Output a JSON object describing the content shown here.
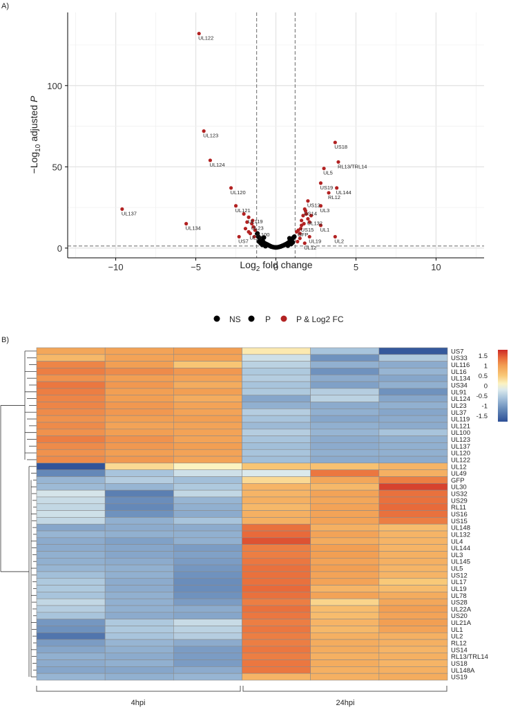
{
  "chart_data": [
    {
      "type": "scatter",
      "panel_label": "A)",
      "xlabel": "Log2 fold change",
      "ylabel": "-Log10 adjusted P",
      "xlim": [
        -13,
        13
      ],
      "ylim": [
        -6,
        145
      ],
      "xticks": [
        -10,
        -5,
        0,
        5,
        10
      ],
      "yticks": [
        0,
        50,
        100
      ],
      "thresholds": {
        "x": [
          -1.2,
          1.2
        ],
        "y": 1.3
      },
      "legend": {
        "placement": "bottom-center",
        "entries": [
          {
            "label": "NS",
            "color": "#000000"
          },
          {
            "label": "P",
            "color": "#000000"
          },
          {
            "label": "P & Log2 FC",
            "color": "#b22222"
          }
        ]
      },
      "significant": [
        {
          "label": "UL122",
          "x": -4.8,
          "y": 132
        },
        {
          "label": "UL123",
          "x": -4.5,
          "y": 72
        },
        {
          "label": "UL124",
          "x": -4.1,
          "y": 54
        },
        {
          "label": "UL120",
          "x": -2.8,
          "y": 37
        },
        {
          "label": "UL121",
          "x": -2.5,
          "y": 26
        },
        {
          "label": "UL137",
          "x": -9.6,
          "y": 24
        },
        {
          "label": "UL134",
          "x": -5.6,
          "y": 15
        },
        {
          "label": "UL119",
          "x": -1.7,
          "y": 19
        },
        {
          "label": "UL23",
          "x": -1.5,
          "y": 15
        },
        {
          "label": "UL100",
          "x": -1.3,
          "y": 11
        },
        {
          "label": "UL16",
          "x": -1.6,
          "y": 9
        },
        {
          "label": "US7",
          "x": -2.3,
          "y": 7
        },
        {
          "label": "US18",
          "x": 3.7,
          "y": 65
        },
        {
          "label": "RL13/TRL14",
          "x": 3.9,
          "y": 53
        },
        {
          "label": "UL5",
          "x": 3.0,
          "y": 49
        },
        {
          "label": "US19",
          "x": 2.8,
          "y": 40
        },
        {
          "label": "UL144",
          "x": 3.8,
          "y": 37
        },
        {
          "label": "RL12",
          "x": 3.3,
          "y": 34
        },
        {
          "label": "US12",
          "x": 2.0,
          "y": 29
        },
        {
          "label": "UL3",
          "x": 2.8,
          "y": 26
        },
        {
          "label": "US14",
          "x": 1.8,
          "y": 24
        },
        {
          "label": "UL132",
          "x": 2.0,
          "y": 18
        },
        {
          "label": "US15",
          "x": 1.6,
          "y": 14
        },
        {
          "label": "UL1",
          "x": 2.8,
          "y": 14
        },
        {
          "label": "GFP",
          "x": 1.4,
          "y": 11
        },
        {
          "label": "UL19",
          "x": 2.1,
          "y": 7
        },
        {
          "label": "UL2",
          "x": 3.7,
          "y": 7
        },
        {
          "label": "UL12",
          "x": 1.8,
          "y": 3
        }
      ],
      "extra_significant": [
        {
          "x": -1.8,
          "y": 16
        },
        {
          "x": -1.9,
          "y": 12
        },
        {
          "x": -1.4,
          "y": 13
        },
        {
          "x": -1.7,
          "y": 10
        },
        {
          "x": -1.35,
          "y": 7
        },
        {
          "x": -2.0,
          "y": 21
        },
        {
          "x": -1.45,
          "y": 17
        },
        {
          "x": 1.7,
          "y": 20
        },
        {
          "x": 1.9,
          "y": 21
        },
        {
          "x": 1.6,
          "y": 17
        },
        {
          "x": 2.1,
          "y": 16
        },
        {
          "x": 1.55,
          "y": 12
        },
        {
          "x": 1.75,
          "y": 15
        },
        {
          "x": 1.5,
          "y": 9
        },
        {
          "x": 1.3,
          "y": 10
        },
        {
          "x": 1.5,
          "y": 6
        },
        {
          "x": 1.35,
          "y": 4
        },
        {
          "x": 2.2,
          "y": 20
        },
        {
          "x": 1.85,
          "y": 23
        }
      ],
      "ns_points": [
        {
          "x": -1.15,
          "y": 9
        },
        {
          "x": -1.1,
          "y": 7
        },
        {
          "x": -1.0,
          "y": 6
        },
        {
          "x": -0.9,
          "y": 5
        },
        {
          "x": -0.8,
          "y": 4
        },
        {
          "x": -0.7,
          "y": 3
        },
        {
          "x": -0.6,
          "y": 2.5
        },
        {
          "x": -0.5,
          "y": 2
        },
        {
          "x": -0.4,
          "y": 1.5
        },
        {
          "x": -0.3,
          "y": 1
        },
        {
          "x": -0.2,
          "y": 0.7
        },
        {
          "x": -0.1,
          "y": 0.5
        },
        {
          "x": 0.0,
          "y": 0.4
        },
        {
          "x": 0.1,
          "y": 0.5
        },
        {
          "x": 0.2,
          "y": 0.7
        },
        {
          "x": 0.3,
          "y": 1
        },
        {
          "x": 0.4,
          "y": 1.4
        },
        {
          "x": 0.5,
          "y": 1.8
        },
        {
          "x": 0.6,
          "y": 2.3
        },
        {
          "x": 0.7,
          "y": 2.8
        },
        {
          "x": 0.8,
          "y": 3.5
        },
        {
          "x": 0.9,
          "y": 4.5
        },
        {
          "x": 1.0,
          "y": 5.5
        },
        {
          "x": 1.1,
          "y": 6.5
        },
        {
          "x": 1.15,
          "y": 7
        },
        {
          "x": -1.05,
          "y": 4
        },
        {
          "x": -0.85,
          "y": 2
        },
        {
          "x": -0.65,
          "y": 1.2
        },
        {
          "x": 0.75,
          "y": 1.5
        },
        {
          "x": 0.95,
          "y": 2.5
        },
        {
          "x": 1.05,
          "y": 3.5
        },
        {
          "x": -0.95,
          "y": 3
        },
        {
          "x": 0.85,
          "y": 6
        },
        {
          "x": -0.75,
          "y": 6.5
        }
      ]
    },
    {
      "type": "heatmap",
      "panel_label": "B)",
      "columns": [
        "4hpi",
        "4hpi",
        "4hpi",
        "24hpi",
        "24hpi",
        "24hpi"
      ],
      "column_groups": [
        {
          "label": "4hpi",
          "span": 3
        },
        {
          "label": "24hpi",
          "span": 3
        }
      ],
      "rows": [
        "US7",
        "US33",
        "UL116",
        "UL16",
        "UL134",
        "US34",
        "UL91",
        "UL124",
        "UL23",
        "UL37",
        "UL119",
        "UL121",
        "UL100",
        "UL123",
        "UL137",
        "UL120",
        "UL122",
        "UL12",
        "UL49",
        "GFP",
        "UL30",
        "US32",
        "US29",
        "RL11",
        "US16",
        "US15",
        "UL148",
        "UL132",
        "UL4",
        "UL144",
        "UL3",
        "UL145",
        "UL5",
        "US12",
        "UL17",
        "UL19",
        "UL78",
        "US28",
        "UL22A",
        "US20",
        "UL21A",
        "UL1",
        "UL2",
        "RL12",
        "US14",
        "RL13/TRL14",
        "US18",
        "UL148A",
        "US19"
      ],
      "values": [
        [
          0.9,
          0.95,
          1.0,
          0.2,
          -0.6,
          -1.7
        ],
        [
          0.7,
          0.95,
          0.95,
          -0.3,
          -1.1,
          -0.55
        ],
        [
          1.2,
          1.0,
          0.55,
          -0.45,
          -0.8,
          -0.85
        ],
        [
          1.25,
          1.15,
          1.05,
          -0.55,
          -1.1,
          -0.75
        ],
        [
          1.1,
          1.0,
          0.95,
          -0.5,
          -0.85,
          -0.9
        ],
        [
          1.3,
          1.05,
          0.85,
          -0.6,
          -0.95,
          -0.8
        ],
        [
          1.25,
          1.0,
          1.0,
          -0.55,
          -0.5,
          -1.1
        ],
        [
          1.2,
          1.0,
          0.85,
          -0.9,
          -0.45,
          -0.9
        ],
        [
          1.2,
          1.05,
          0.95,
          -0.8,
          -0.85,
          -0.8
        ],
        [
          1.15,
          1.05,
          0.95,
          -0.5,
          -0.8,
          -0.9
        ],
        [
          1.1,
          1.0,
          1.0,
          -0.6,
          -0.9,
          -0.85
        ],
        [
          1.15,
          0.95,
          0.95,
          -0.7,
          -0.8,
          -0.85
        ],
        [
          1.1,
          1.0,
          0.95,
          -0.5,
          -0.75,
          -0.6
        ],
        [
          1.25,
          1.1,
          0.95,
          -0.6,
          -0.85,
          -0.8
        ],
        [
          1.15,
          1.05,
          1.0,
          -0.65,
          -0.85,
          -0.8
        ],
        [
          1.1,
          1.0,
          0.95,
          -0.6,
          -0.8,
          -0.8
        ],
        [
          1.15,
          1.05,
          0.95,
          -0.65,
          -0.85,
          -0.85
        ],
        [
          -1.75,
          0.35,
          0.1,
          0.55,
          0.6,
          0.75
        ],
        [
          -1.2,
          -0.6,
          -0.3,
          -0.2,
          1.3,
          0.8
        ],
        [
          -0.75,
          -0.5,
          -0.65,
          0.35,
          0.9,
          1.25
        ],
        [
          -0.7,
          -0.75,
          -0.55,
          0.75,
          0.7,
          1.65
        ],
        [
          -0.25,
          -1.3,
          -0.4,
          0.75,
          0.95,
          1.35
        ],
        [
          -0.35,
          -1.15,
          -0.75,
          0.8,
          0.9,
          1.35
        ],
        [
          -0.4,
          -1.2,
          -0.8,
          0.7,
          0.95,
          1.4
        ],
        [
          -0.3,
          -1.1,
          -0.85,
          0.8,
          0.95,
          1.35
        ],
        [
          -0.4,
          -0.8,
          -0.6,
          0.8,
          0.95,
          1.25
        ],
        [
          -0.9,
          -0.85,
          -0.85,
          1.35,
          0.8,
          0.65
        ],
        [
          -0.75,
          -0.8,
          -0.8,
          1.4,
          0.95,
          0.75
        ],
        [
          -0.85,
          -0.95,
          -0.8,
          1.55,
          0.85,
          0.75
        ],
        [
          -0.85,
          -0.9,
          -1.0,
          1.25,
          1.0,
          0.75
        ],
        [
          -0.8,
          -0.9,
          -0.95,
          1.25,
          1.0,
          0.8
        ],
        [
          -0.8,
          -0.85,
          -1.0,
          1.3,
          0.95,
          0.8
        ],
        [
          -0.75,
          -0.8,
          -1.05,
          1.35,
          1.0,
          0.75
        ],
        [
          -0.65,
          -0.8,
          -1.1,
          1.35,
          0.95,
          0.75
        ],
        [
          -0.55,
          -0.85,
          -1.15,
          1.35,
          0.95,
          0.5
        ],
        [
          -0.55,
          -0.85,
          -1.15,
          1.4,
          0.75,
          0.65
        ],
        [
          -0.6,
          -0.8,
          -1.1,
          1.35,
          0.95,
          0.85
        ],
        [
          -0.4,
          -0.8,
          -1.0,
          1.25,
          0.4,
          0.9
        ],
        [
          -0.5,
          -0.8,
          -0.85,
          1.35,
          0.65,
          1.0
        ],
        [
          -0.6,
          -0.85,
          -0.9,
          1.3,
          0.65,
          0.95
        ],
        [
          -1.05,
          -0.55,
          -0.35,
          1.25,
          0.75,
          1.0
        ],
        [
          -1.1,
          -0.55,
          -0.45,
          1.3,
          0.7,
          0.95
        ],
        [
          -1.4,
          -0.6,
          -0.5,
          1.25,
          0.8,
          0.8
        ],
        [
          -1.0,
          -0.75,
          -0.85,
          1.25,
          0.85,
          0.8
        ],
        [
          -0.9,
          -0.8,
          -1.0,
          1.3,
          0.85,
          0.75
        ],
        [
          -0.8,
          -0.85,
          -1.0,
          1.25,
          0.8,
          0.8
        ],
        [
          -0.85,
          -0.8,
          -1.0,
          1.3,
          0.85,
          0.75
        ],
        [
          -0.9,
          -0.9,
          -0.85,
          1.3,
          0.8,
          0.8
        ],
        [
          -0.75,
          -0.8,
          -0.75,
          0.75,
          0.8,
          0.85
        ]
      ],
      "color_scale": {
        "min": -1.8,
        "max": 1.8,
        "stops": [
          {
            "v": -1.8,
            "color": "#2c4f96"
          },
          {
            "v": -1.2,
            "color": "#6488b8"
          },
          {
            "v": -0.6,
            "color": "#a8c4dc"
          },
          {
            "v": -0.2,
            "color": "#dbe9ec"
          },
          {
            "v": 0.1,
            "color": "#fbf3c2"
          },
          {
            "v": 0.5,
            "color": "#f9c978"
          },
          {
            "v": 1.0,
            "color": "#f29f53"
          },
          {
            "v": 1.4,
            "color": "#e86a3a"
          },
          {
            "v": 1.8,
            "color": "#cc2a26"
          }
        ]
      },
      "legend_ticks": [
        "1.5",
        "1",
        "0.5",
        "0",
        "-0.5",
        "-1",
        "-1.5"
      ],
      "legend_tick_values": [
        1.5,
        1,
        0.5,
        0,
        -0.5,
        -1,
        -1.5
      ]
    }
  ]
}
